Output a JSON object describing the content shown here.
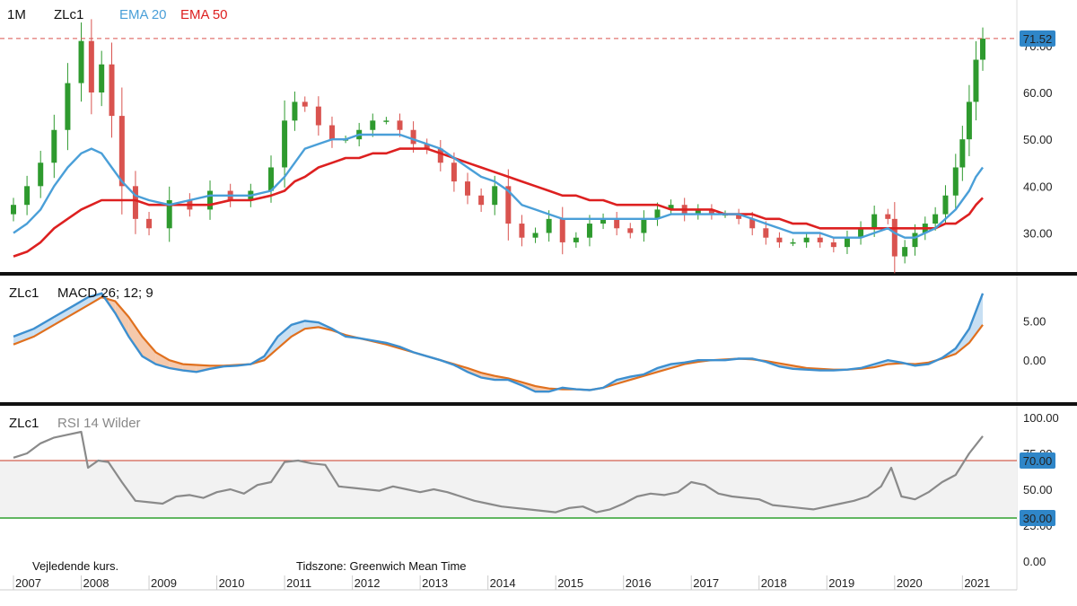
{
  "header": {
    "interval": "1M",
    "symbol": "ZLc1",
    "ema20_label": "EMA 20",
    "ema50_label": "EMA 50"
  },
  "macd_panel": {
    "symbol": "ZLc1",
    "title": "MACD 26; 12; 9"
  },
  "rsi_panel": {
    "symbol": "ZLc1",
    "title": "RSI 14 Wilder"
  },
  "footer": {
    "note": "Vejledende kurs.",
    "timezone": "Tidszone: Greenwich Mean Time"
  },
  "colors": {
    "up": "#2e9a2e",
    "down": "#d9534f",
    "ema20": "#4a9fd8",
    "ema50": "#dd2020",
    "macd": "#3d8fcf",
    "signal": "#e0701e",
    "fill_pos": "#c7dff3",
    "fill_neg": "#f5c9ac",
    "rsi": "#8a8a8a",
    "rsi_upper": "#d2604f",
    "rsi_lower": "#2fa12f",
    "last_price_badge": "#2f86c8"
  },
  "chart_data": [
    {
      "type": "candlestick",
      "panel": "price",
      "x_labels": [
        "2007",
        "2008",
        "2009",
        "2010",
        "2011",
        "2012",
        "2013",
        "2014",
        "2015",
        "2016",
        "2017",
        "2018",
        "2019",
        "2020",
        "2021"
      ],
      "y_ticks": [
        "30.00",
        "40.00",
        "50.00",
        "60.00",
        "70.00"
      ],
      "ylim": [
        23,
        74
      ],
      "last_price": "71.52",
      "x": [
        2007.0,
        2007.2,
        2007.4,
        2007.6,
        2007.8,
        2008.0,
        2008.15,
        2008.3,
        2008.45,
        2008.6,
        2008.8,
        2009.0,
        2009.3,
        2009.6,
        2009.9,
        2010.2,
        2010.5,
        2010.8,
        2011.0,
        2011.15,
        2011.3,
        2011.5,
        2011.7,
        2011.9,
        2012.1,
        2012.3,
        2012.5,
        2012.7,
        2012.9,
        2013.1,
        2013.3,
        2013.5,
        2013.7,
        2013.9,
        2014.1,
        2014.3,
        2014.5,
        2014.7,
        2014.9,
        2015.1,
        2015.3,
        2015.5,
        2015.7,
        2015.9,
        2016.1,
        2016.3,
        2016.5,
        2016.7,
        2016.9,
        2017.1,
        2017.3,
        2017.5,
        2017.7,
        2017.9,
        2018.1,
        2018.3,
        2018.5,
        2018.7,
        2018.9,
        2019.1,
        2019.3,
        2019.5,
        2019.7,
        2019.9,
        2020.0,
        2020.15,
        2020.3,
        2020.45,
        2020.6,
        2020.75,
        2020.9,
        2021.0,
        2021.1,
        2021.2,
        2021.3
      ],
      "close": [
        36,
        40,
        45,
        52,
        62,
        71,
        60,
        66,
        55,
        40,
        33,
        31,
        37,
        35,
        39,
        37,
        39,
        44,
        54,
        58,
        57,
        53,
        50,
        50,
        52,
        54,
        54,
        52,
        49,
        48,
        45,
        41,
        38,
        36,
        40,
        32,
        29,
        30,
        33,
        28,
        29,
        32,
        33,
        31,
        30,
        33,
        35,
        36,
        34,
        35,
        34,
        34,
        33,
        31,
        29,
        28,
        28,
        29,
        28,
        27,
        29,
        31,
        34,
        33,
        25,
        27,
        30,
        32,
        34,
        38,
        44,
        50,
        58,
        67,
        71.5
      ],
      "series": [
        {
          "name": "EMA 20",
          "values": [
            30,
            32,
            35,
            40,
            44,
            47,
            48,
            47,
            44,
            41,
            38,
            37,
            36,
            37,
            38,
            38,
            38,
            39,
            42,
            45,
            48,
            49,
            50,
            50,
            51,
            51,
            51,
            51,
            50,
            49,
            48,
            46,
            44,
            42,
            41,
            39,
            36,
            35,
            34,
            33,
            33,
            33,
            33,
            33,
            33,
            33,
            33,
            34,
            34,
            34,
            34,
            34,
            34,
            33,
            32,
            31,
            30,
            30,
            30,
            29,
            29,
            29,
            30,
            31,
            30,
            29,
            29,
            30,
            31,
            33,
            35,
            37,
            39,
            42,
            44
          ]
        },
        {
          "name": "EMA 50",
          "values": [
            25,
            26,
            28,
            31,
            33,
            35,
            36,
            37,
            37,
            37,
            37,
            36,
            36,
            36,
            36,
            37,
            37,
            38,
            39,
            41,
            42,
            44,
            45,
            46,
            46,
            47,
            47,
            48,
            48,
            48,
            47,
            46,
            45,
            44,
            43,
            42,
            41,
            40,
            39,
            38,
            38,
            37,
            37,
            36,
            36,
            36,
            36,
            35,
            35,
            35,
            35,
            34,
            34,
            34,
            33,
            33,
            32,
            32,
            31,
            31,
            31,
            31,
            31,
            31,
            31,
            31,
            31,
            31,
            31,
            32,
            32,
            33,
            34,
            36,
            37.5
          ]
        }
      ]
    },
    {
      "type": "line",
      "panel": "macd",
      "y_ticks": [
        "5.00",
        "0.00"
      ],
      "ylim": [
        -5,
        9.5
      ],
      "x": [
        2007.0,
        2007.3,
        2007.6,
        2007.9,
        2008.1,
        2008.3,
        2008.5,
        2008.7,
        2008.9,
        2009.1,
        2009.3,
        2009.5,
        2009.7,
        2009.9,
        2010.1,
        2010.3,
        2010.5,
        2010.7,
        2010.9,
        2011.1,
        2011.3,
        2011.5,
        2011.7,
        2011.9,
        2012.1,
        2012.3,
        2012.5,
        2012.7,
        2012.9,
        2013.1,
        2013.3,
        2013.5,
        2013.7,
        2013.9,
        2014.1,
        2014.3,
        2014.5,
        2014.7,
        2014.9,
        2015.1,
        2015.3,
        2015.5,
        2015.7,
        2015.9,
        2016.1,
        2016.3,
        2016.5,
        2016.7,
        2016.9,
        2017.1,
        2017.3,
        2017.5,
        2017.7,
        2017.9,
        2018.1,
        2018.3,
        2018.5,
        2018.7,
        2018.9,
        2019.1,
        2019.3,
        2019.5,
        2019.7,
        2019.9,
        2020.1,
        2020.3,
        2020.5,
        2020.7,
        2020.9,
        2021.1,
        2021.3
      ],
      "series": [
        {
          "name": "MACD",
          "values": [
            3,
            4,
            5.5,
            7,
            8,
            8.5,
            6,
            3,
            0.5,
            -0.5,
            -1,
            -1.3,
            -1.5,
            -1.1,
            -0.8,
            -0.7,
            -0.5,
            0.5,
            3,
            4.5,
            5,
            4.8,
            4,
            3,
            2.8,
            2.5,
            2.2,
            1.7,
            1,
            0.5,
            0,
            -0.6,
            -1.5,
            -2.2,
            -2.5,
            -2.5,
            -3.2,
            -4,
            -4,
            -3.5,
            -3.7,
            -3.8,
            -3.5,
            -2.5,
            -2.1,
            -1.8,
            -1,
            -0.5,
            -0.3,
            0,
            0,
            0,
            0.2,
            0.2,
            -0.2,
            -0.8,
            -1.1,
            -1.2,
            -1.3,
            -1.3,
            -1.2,
            -1,
            -0.5,
            0,
            -0.3,
            -0.7,
            -0.5,
            0.3,
            1.5,
            4,
            8.5
          ]
        },
        {
          "name": "Signal",
          "values": [
            2,
            3,
            4.5,
            6,
            7,
            8,
            7.5,
            5.5,
            3,
            1,
            0,
            -0.5,
            -0.6,
            -0.7,
            -0.7,
            -0.6,
            -0.5,
            0,
            1.5,
            3,
            4,
            4.2,
            3.8,
            3.2,
            2.8,
            2.4,
            2,
            1.5,
            1,
            0.5,
            0,
            -0.5,
            -1,
            -1.6,
            -2,
            -2.3,
            -2.8,
            -3.3,
            -3.6,
            -3.7,
            -3.7,
            -3.8,
            -3.5,
            -3,
            -2.5,
            -2,
            -1.5,
            -1,
            -0.5,
            -0.2,
            0,
            0.1,
            0.2,
            0.1,
            -0.1,
            -0.4,
            -0.7,
            -1,
            -1.1,
            -1.2,
            -1.2,
            -1.1,
            -0.9,
            -0.5,
            -0.4,
            -0.5,
            -0.3,
            0.2,
            0.8,
            2.2,
            4.5
          ]
        }
      ]
    },
    {
      "type": "line",
      "panel": "rsi",
      "y_ticks": [
        "100.00",
        "75.00",
        "50.00",
        "25.00",
        "0.00"
      ],
      "ylim": [
        0,
        100
      ],
      "overbought": "70.00",
      "oversold": "30.00",
      "x": [
        2007.0,
        2007.2,
        2007.4,
        2007.6,
        2007.8,
        2008.0,
        2008.1,
        2008.25,
        2008.4,
        2008.6,
        2008.8,
        2009.0,
        2009.2,
        2009.4,
        2009.6,
        2009.8,
        2010.0,
        2010.2,
        2010.4,
        2010.6,
        2010.8,
        2011.0,
        2011.2,
        2011.4,
        2011.6,
        2011.8,
        2012.0,
        2012.2,
        2012.4,
        2012.6,
        2012.8,
        2013.0,
        2013.2,
        2013.4,
        2013.6,
        2013.8,
        2014.0,
        2014.2,
        2014.4,
        2014.6,
        2014.8,
        2015.0,
        2015.2,
        2015.4,
        2015.6,
        2015.8,
        2016.0,
        2016.2,
        2016.4,
        2016.6,
        2016.8,
        2017.0,
        2017.2,
        2017.4,
        2017.6,
        2017.8,
        2018.0,
        2018.2,
        2018.4,
        2018.6,
        2018.8,
        2019.0,
        2019.2,
        2019.4,
        2019.6,
        2019.8,
        2019.95,
        2020.1,
        2020.3,
        2020.5,
        2020.7,
        2020.9,
        2021.1,
        2021.3
      ],
      "values": [
        72,
        75,
        82,
        86,
        88,
        90,
        65,
        70,
        69,
        55,
        42,
        41,
        40,
        45,
        46,
        44,
        48,
        50,
        47,
        53,
        55,
        69,
        70,
        68,
        67,
        52,
        51,
        50,
        49,
        52,
        50,
        48,
        50,
        48,
        45,
        42,
        40,
        38,
        37,
        36,
        35,
        34,
        37,
        38,
        34,
        36,
        40,
        45,
        47,
        46,
        48,
        55,
        53,
        47,
        45,
        44,
        43,
        39,
        38,
        37,
        36,
        38,
        40,
        42,
        45,
        52,
        65,
        45,
        43,
        48,
        55,
        60,
        75,
        87
      ]
    }
  ]
}
